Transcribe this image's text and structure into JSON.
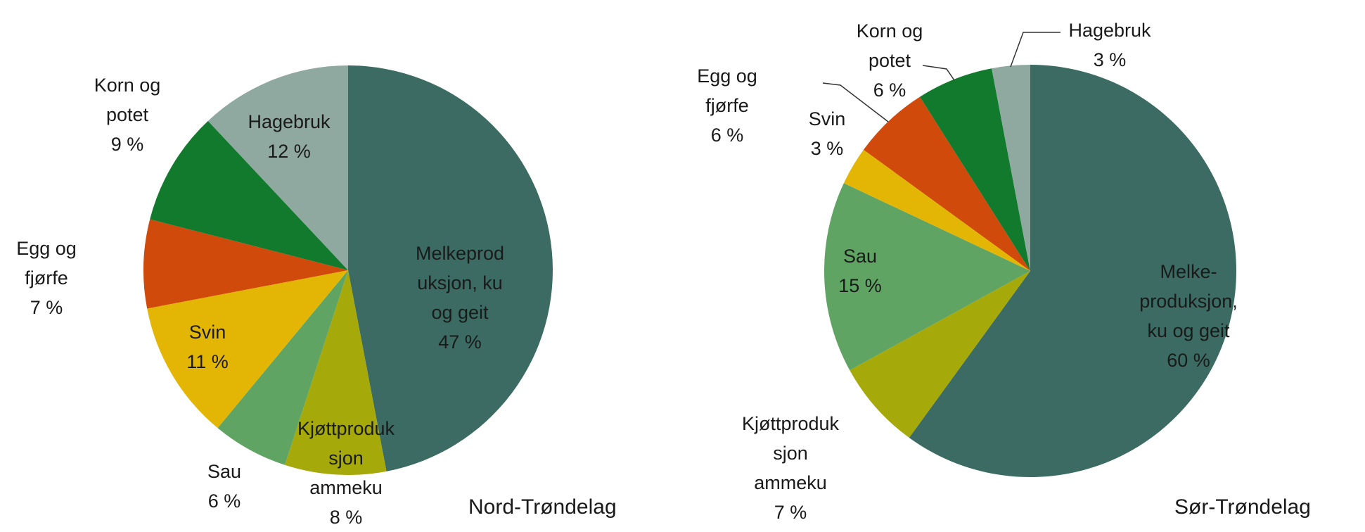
{
  "chart_data": [
    {
      "type": "pie",
      "title": "Nord-Trøndelag",
      "categories": [
        [
          "Melkeprod",
          "uksjon, ku",
          "og geit"
        ],
        [
          "Kjøttproduk",
          "sjon",
          "ammeku"
        ],
        [
          "Sau"
        ],
        [
          "Svin"
        ],
        [
          "Egg og",
          "fjørfe"
        ],
        [
          "Korn og",
          "potet"
        ],
        [
          "Hagebruk"
        ]
      ],
      "values": [
        47,
        8,
        6,
        11,
        7,
        9,
        12
      ],
      "value_labels": [
        "47 %",
        "8 %",
        "6 %",
        "11 %",
        "7 %",
        "9 %",
        "12 %"
      ],
      "colors": [
        "#3b6b62",
        "#a5a90a",
        "#5fa463",
        "#e3b505",
        "#d04a0c",
        "#127a2c",
        "#8fa8a0"
      ]
    },
    {
      "type": "pie",
      "title": "Sør-Trøndelag",
      "categories": [
        [
          "Melke-",
          "produksjon,",
          "ku og geit"
        ],
        [
          "Kjøttproduk",
          "sjon",
          "ammeku"
        ],
        [
          "Sau"
        ],
        [
          "Svin"
        ],
        [
          "Egg og",
          "fjørfe"
        ],
        [
          "Korn og",
          "potet"
        ],
        [
          "Hagebruk"
        ]
      ],
      "values": [
        60,
        7,
        15,
        3,
        6,
        6,
        3
      ],
      "value_labels": [
        "60 %",
        "7 %",
        "15 %",
        "3 %",
        "6 %",
        "6 %",
        "3 %"
      ],
      "colors": [
        "#3b6b62",
        "#a5a90a",
        "#5fa463",
        "#e3b505",
        "#d04a0c",
        "#127a2c",
        "#8fa8a0"
      ]
    }
  ]
}
